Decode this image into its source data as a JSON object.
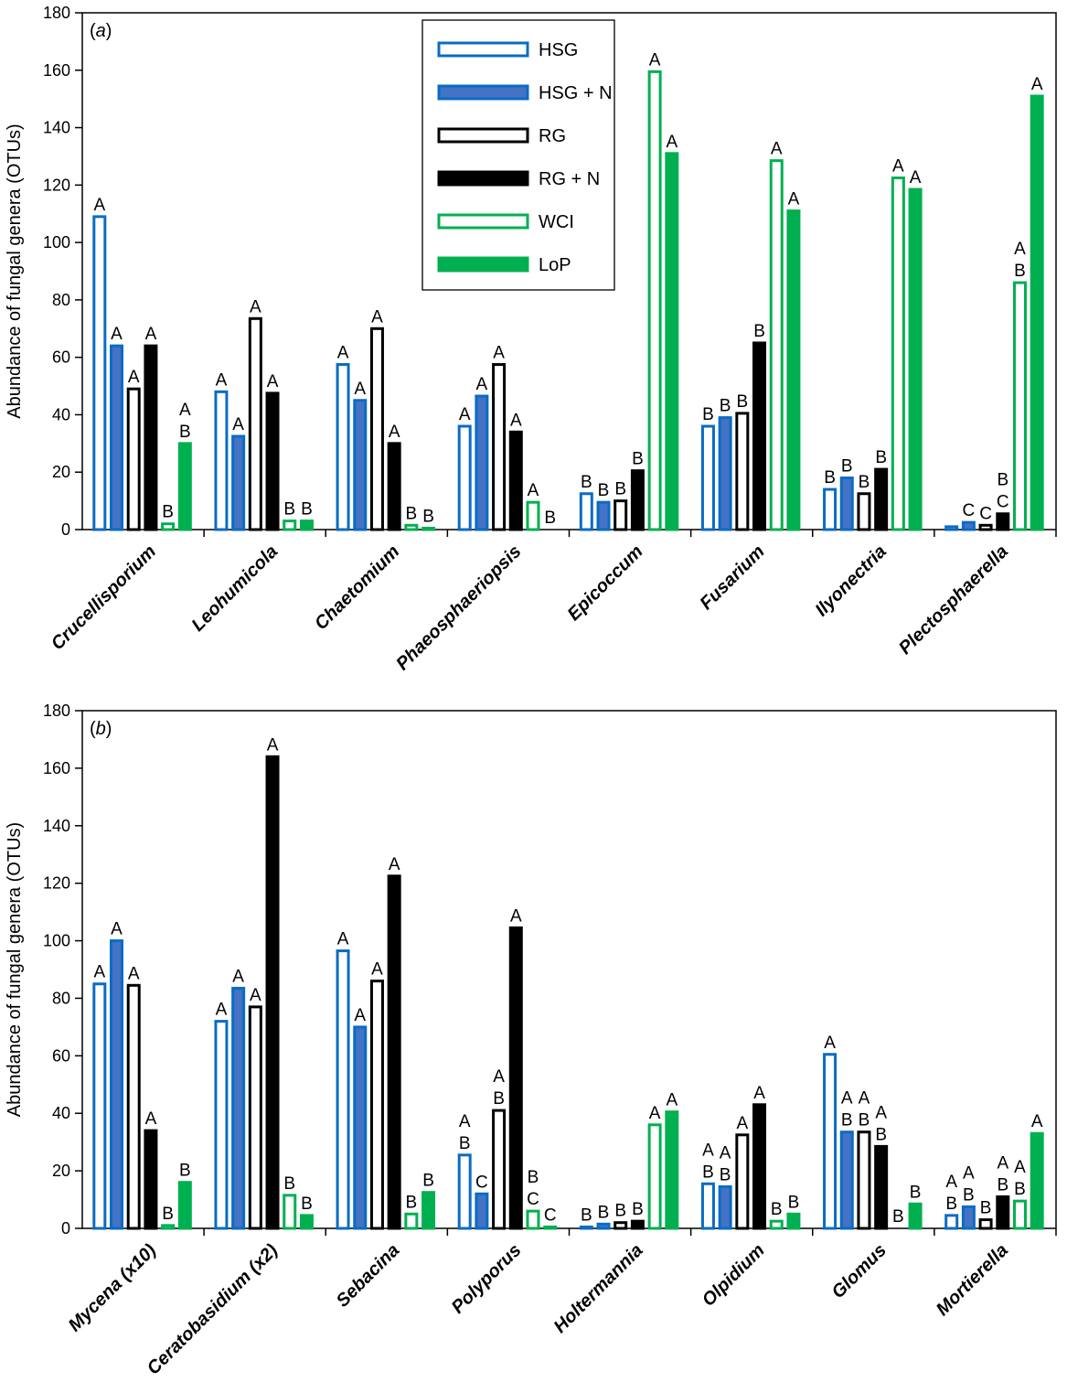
{
  "legend": [
    {
      "name": "HSG",
      "stroke": "#0a6cc4",
      "fill": "#ffffff"
    },
    {
      "name": "HSG + N",
      "stroke": "#0a6cc4",
      "fill": "#4472c4"
    },
    {
      "name": "RG",
      "stroke": "#000000",
      "fill": "#ffffff"
    },
    {
      "name": "RG + N",
      "stroke": "#000000",
      "fill": "#000000"
    },
    {
      "name": "WCI",
      "stroke": "#00b050",
      "fill": "#ffffff"
    },
    {
      "name": "LoP",
      "stroke": "#00b050",
      "fill": "#00b050"
    }
  ],
  "chart_data": [
    {
      "type": "bar",
      "panel_label": "(a)",
      "ylabel": "Abundance of fungal genera (OTUs)",
      "ylim": [
        0,
        180
      ],
      "yticks": [
        0,
        20,
        40,
        60,
        80,
        100,
        120,
        140,
        160,
        180
      ],
      "legend_placement": "top-center",
      "categories": [
        "Crucellisporium",
        "Leohumicola",
        "Chaetomium",
        "Phaeosphaeriopsis",
        "Epicoccum",
        "Fusarium",
        "Ilyonectria",
        "Plectosphaerella"
      ],
      "series": [
        {
          "name": "HSG",
          "values": [
            109,
            48,
            57.5,
            36,
            12.5,
            36,
            14,
            1
          ],
          "letters": [
            "A",
            "A",
            "A",
            "A",
            "B",
            "B",
            "B",
            ""
          ]
        },
        {
          "name": "HSG + N",
          "values": [
            64,
            32.5,
            45,
            46.5,
            9.5,
            39,
            18,
            2.5
          ],
          "letters": [
            "A",
            "A",
            "A",
            "A",
            "B",
            "B",
            "B",
            "C"
          ]
        },
        {
          "name": "RG",
          "values": [
            49,
            73.5,
            70,
            57.5,
            10,
            40.5,
            12.5,
            1.5
          ],
          "letters": [
            "A",
            "A",
            "A",
            "A",
            "B",
            "B",
            "B",
            "C"
          ]
        },
        {
          "name": "RG + N",
          "values": [
            64,
            47.5,
            30,
            34,
            20.5,
            65,
            21,
            5.5
          ],
          "letters": [
            "A",
            "A",
            "A",
            "A",
            "B",
            "B",
            "B",
            "B\nC"
          ]
        },
        {
          "name": "WCI",
          "values": [
            2,
            3,
            1.5,
            9.5,
            159.5,
            128.5,
            122.5,
            86
          ],
          "letters": [
            "B",
            "B",
            "B",
            "A",
            "A",
            "A",
            "A",
            "A\nB"
          ]
        },
        {
          "name": "LoP",
          "values": [
            30,
            3,
            0.5,
            0,
            131,
            111,
            118.5,
            151
          ],
          "letters": [
            "A\nB",
            "B",
            "B",
            "B",
            "A",
            "A",
            "A",
            "A"
          ]
        }
      ]
    },
    {
      "type": "bar",
      "panel_label": "(b)",
      "ylabel": "Abundance of fungal genera (OTUs)",
      "ylim": [
        0,
        180
      ],
      "yticks": [
        0,
        20,
        40,
        60,
        80,
        100,
        120,
        140,
        160,
        180
      ],
      "categories": [
        "Mycena (x10)",
        "Ceratobasidium (x2)",
        "Sebacina",
        "Polyporus",
        "Holtermannia",
        "Olpidium",
        "Glomus",
        "Mortierella"
      ],
      "series": [
        {
          "name": "HSG",
          "values": [
            85,
            72,
            96.5,
            25.5,
            0.5,
            15.5,
            60.5,
            4.5
          ],
          "letters": [
            "A",
            "A",
            "A",
            "A\nB",
            "B",
            "A\nB",
            "A",
            "A\nB"
          ]
        },
        {
          "name": "HSG + N",
          "values": [
            100,
            83.5,
            70,
            12,
            1.5,
            14.5,
            33.5,
            7.5
          ],
          "letters": [
            "A",
            "A",
            "A",
            "C",
            "B",
            "A\nB",
            "A\nB",
            "A\nB"
          ]
        },
        {
          "name": "RG",
          "values": [
            84.5,
            77,
            86,
            41,
            2,
            32.5,
            33.5,
            3
          ],
          "letters": [
            "A",
            "A",
            "A",
            "A\nB",
            "B",
            "A",
            "A\nB",
            "B"
          ]
        },
        {
          "name": "RG + N",
          "values": [
            34,
            164,
            122.5,
            104.5,
            2.5,
            43,
            28.5,
            11
          ],
          "letters": [
            "A",
            "A",
            "A",
            "A",
            "B",
            "A",
            "A\nB",
            "A\nB"
          ]
        },
        {
          "name": "WCI",
          "values": [
            1,
            11.5,
            5,
            6,
            36,
            2.5,
            0,
            9.5
          ],
          "letters": [
            "B",
            "B",
            "B",
            "B\nC",
            "A",
            "B",
            "B",
            "A\nB"
          ]
        },
        {
          "name": "LoP",
          "values": [
            16,
            4.5,
            12.5,
            0.5,
            40.5,
            5,
            8.5,
            33
          ],
          "letters": [
            "B",
            "B",
            "B",
            "C",
            "A",
            "B",
            "B",
            "A"
          ]
        }
      ]
    }
  ]
}
